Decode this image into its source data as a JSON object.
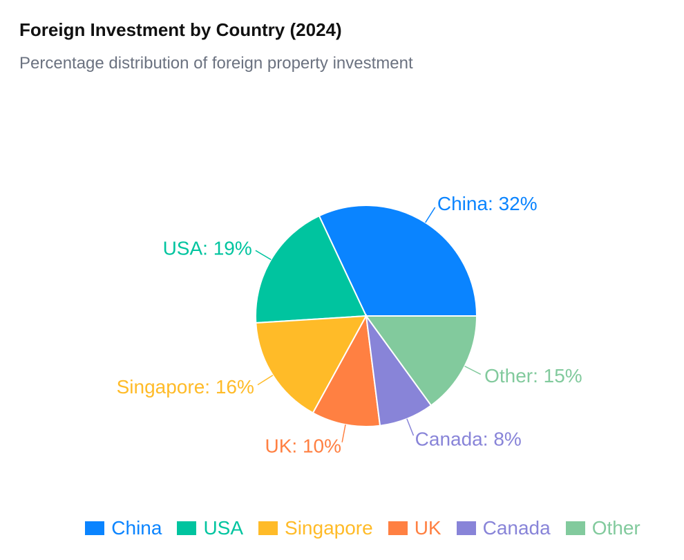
{
  "chart_data": {
    "type": "pie",
    "title": "Foreign Investment by Country (2024)",
    "subtitle": "Percentage distribution of foreign property investment",
    "slices": [
      {
        "name": "China",
        "value": 32,
        "label": "China: 32%",
        "color": "#0a84ff"
      },
      {
        "name": "USA",
        "value": 19,
        "label": "USA: 19%",
        "color": "#00c49f"
      },
      {
        "name": "Singapore",
        "value": 16,
        "label": "Singapore: 16%",
        "color": "#ffbb28"
      },
      {
        "name": "UK",
        "value": 10,
        "label": "UK: 10%",
        "color": "#ff8042"
      },
      {
        "name": "Canada",
        "value": 8,
        "label": "Canada: 8%",
        "color": "#8884d8"
      },
      {
        "name": "Other",
        "value": 15,
        "label": "Other: 15%",
        "color": "#82ca9d"
      }
    ],
    "legend_position": "bottom-center"
  }
}
